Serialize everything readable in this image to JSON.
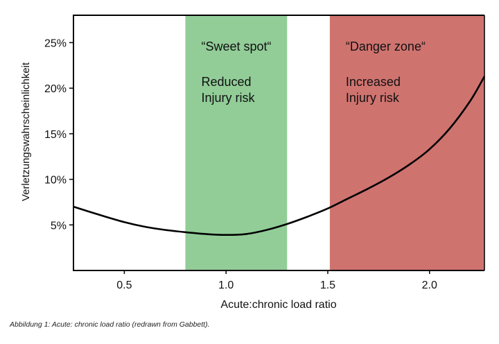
{
  "chart_data": {
    "type": "line",
    "ylabel": "Verletzungswahrscheinlichkeit",
    "xlabel": "Acute:chronic load ratio",
    "xlim": [
      0.25,
      2.27
    ],
    "ylim": [
      0,
      28
    ],
    "x_ticks": [
      0.5,
      1.0,
      1.5,
      2.0
    ],
    "x_tick_labels": [
      "0.5",
      "1.0",
      "1.5",
      "2.0"
    ],
    "y_ticks": [
      5,
      10,
      15,
      20,
      25
    ],
    "y_tick_labels": [
      "5%",
      "10%",
      "15%",
      "20%",
      "25%"
    ],
    "zones": [
      {
        "name": "sweet-spot",
        "x_from": 0.8,
        "x_to": 1.3,
        "color": "#92cd98",
        "title": "“Sweet spot“",
        "lines": [
          "Reduced",
          "Injury risk"
        ]
      },
      {
        "name": "danger-zone",
        "x_from": 1.51,
        "x_to": 2.27,
        "color": "#cf736f",
        "title": "“Danger zone“",
        "lines": [
          "Increased",
          "Injury risk"
        ]
      }
    ],
    "series": [
      {
        "name": "injury-risk",
        "x": [
          0.25,
          0.4,
          0.5,
          0.6,
          0.7,
          0.8,
          0.9,
          1.0,
          1.1,
          1.2,
          1.3,
          1.4,
          1.5,
          1.6,
          1.7,
          1.8,
          1.9,
          2.0,
          2.1,
          2.2,
          2.27
        ],
        "values": [
          7.0,
          5.95,
          5.3,
          4.8,
          4.45,
          4.2,
          4.0,
          3.9,
          4.0,
          4.45,
          5.1,
          5.9,
          6.8,
          7.9,
          9.0,
          10.2,
          11.6,
          13.3,
          15.6,
          18.6,
          21.3
        ]
      }
    ]
  },
  "caption": "Abbildung 1: Acute: chronic load ratio (redrawn from Gabbett)."
}
